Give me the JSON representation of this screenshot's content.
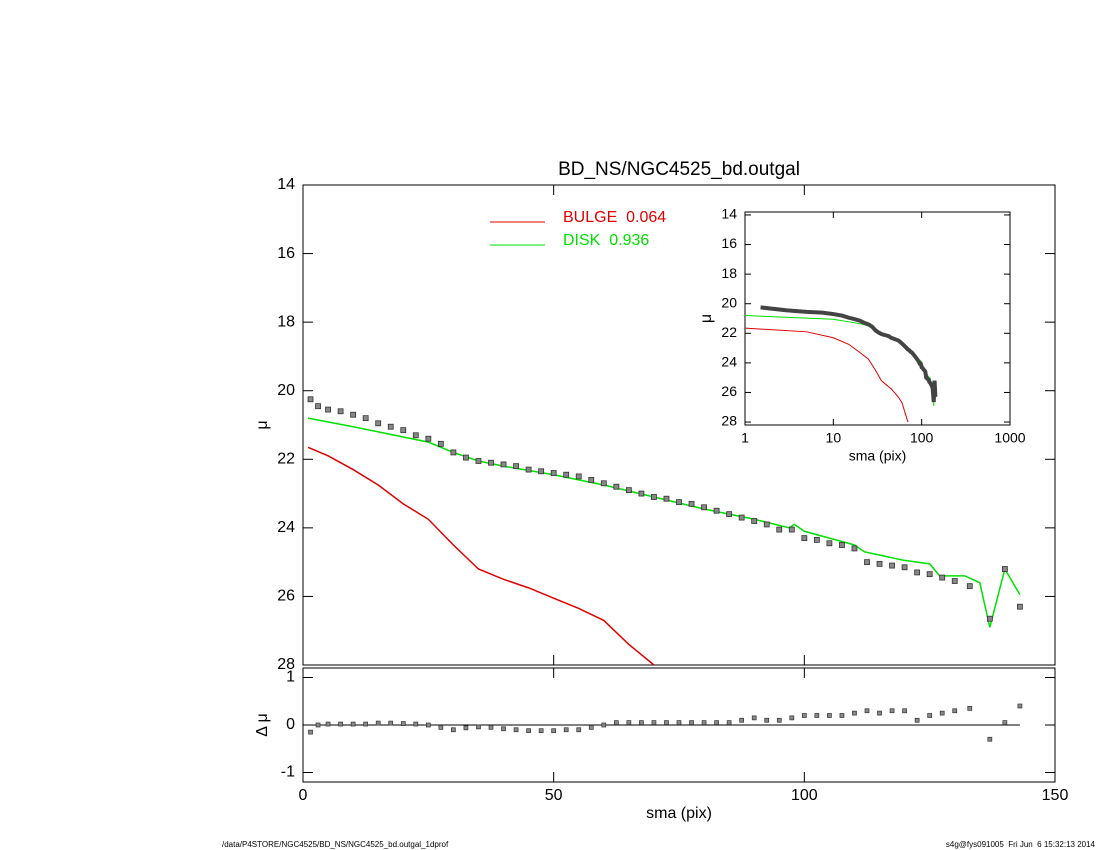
{
  "chart_data": [
    {
      "type": "line",
      "title": "BD_NS/NGC4525_bd.outgal",
      "ylabel": "μ",
      "xlim": [
        0,
        150
      ],
      "xticks": [
        0,
        50,
        100,
        150
      ],
      "ylim": [
        28,
        14
      ],
      "yticks": [
        14,
        16,
        18,
        20,
        22,
        24,
        26,
        28
      ],
      "series": [
        {
          "name": "BULGE",
          "fraction": 0.064,
          "color": "#e00000",
          "x": [
            1,
            5,
            10,
            15,
            20,
            25,
            30,
            35,
            40,
            45,
            50,
            55,
            60,
            65,
            70
          ],
          "values": [
            21.65,
            21.9,
            22.3,
            22.75,
            23.3,
            23.75,
            24.5,
            25.2,
            25.5,
            25.75,
            26.05,
            26.35,
            26.7,
            27.4,
            28.0
          ]
        },
        {
          "name": "DISK",
          "fraction": 0.936,
          "color": "#00e000",
          "x": [
            1,
            10,
            20,
            25,
            30,
            35,
            40,
            50,
            60,
            70,
            80,
            90,
            97,
            98,
            100,
            110,
            112,
            120,
            125,
            127,
            132,
            135,
            137,
            140,
            143
          ],
          "values": [
            20.8,
            21.05,
            21.35,
            21.5,
            21.8,
            22.05,
            22.2,
            22.45,
            22.75,
            23.1,
            23.45,
            23.75,
            24.0,
            23.9,
            24.1,
            24.5,
            24.7,
            24.95,
            25.05,
            25.4,
            25.4,
            25.6,
            26.9,
            25.2,
            25.95
          ]
        }
      ],
      "points": {
        "color": "#888888",
        "x": [
          1.5,
          3,
          5,
          7.5,
          10,
          12.5,
          15,
          17.5,
          20,
          22.5,
          25,
          27.5,
          30,
          32.5,
          35,
          37.5,
          40,
          42.5,
          45,
          47.5,
          50,
          52.5,
          55,
          57.5,
          60,
          62.5,
          65,
          67.5,
          70,
          72.5,
          75,
          77.5,
          80,
          82.5,
          85,
          87.5,
          90,
          92.5,
          95,
          97.5,
          100,
          102.5,
          105,
          107.5,
          110,
          112.5,
          115,
          117.5,
          120,
          122.5,
          125,
          127.5,
          130,
          133,
          137,
          140,
          143
        ],
        "values": [
          20.25,
          20.45,
          20.55,
          20.6,
          20.7,
          20.8,
          20.95,
          21.05,
          21.15,
          21.3,
          21.4,
          21.55,
          21.8,
          21.95,
          22.05,
          22.1,
          22.15,
          22.2,
          22.3,
          22.35,
          22.4,
          22.45,
          22.5,
          22.6,
          22.7,
          22.8,
          22.9,
          23.0,
          23.1,
          23.15,
          23.25,
          23.3,
          23.4,
          23.5,
          23.6,
          23.7,
          23.8,
          23.9,
          24.05,
          24.05,
          24.3,
          24.35,
          24.45,
          24.5,
          24.6,
          25.0,
          25.05,
          25.1,
          25.15,
          25.3,
          25.35,
          25.45,
          25.55,
          25.7,
          26.65,
          25.2,
          26.3
        ]
      }
    },
    {
      "type": "line",
      "xlabel": "sma (pix)",
      "ylabel": "μ",
      "xlog": true,
      "xlim": [
        1,
        1000
      ],
      "xticks": [
        1,
        10,
        100,
        1000
      ],
      "ylim": [
        28.2,
        13.8
      ],
      "yticks": [
        14,
        16,
        18,
        20,
        22,
        24,
        26,
        28
      ]
    },
    {
      "type": "scatter",
      "xlabel": "sma (pix)",
      "ylabel": "Δ μ",
      "xlim": [
        0,
        150
      ],
      "xticks": [
        0,
        50,
        100,
        150
      ],
      "ylim": [
        -1.2,
        1.2
      ],
      "yticks": [
        -1,
        0,
        1
      ],
      "values": [
        -0.15,
        0,
        0.02,
        0.02,
        0.02,
        0.02,
        0.04,
        0.04,
        0.03,
        0.02,
        0,
        -0.05,
        -0.1,
        -0.06,
        -0.04,
        -0.05,
        -0.08,
        -0.1,
        -0.12,
        -0.12,
        -0.12,
        -0.1,
        -0.1,
        -0.05,
        0,
        0.05,
        0.05,
        0.05,
        0.05,
        0.05,
        0.05,
        0.05,
        0.05,
        0.05,
        0.05,
        0.1,
        0.15,
        0.1,
        0.1,
        0.15,
        0.2,
        0.2,
        0.2,
        0.2,
        0.25,
        0.3,
        0.25,
        0.3,
        0.3,
        0.1,
        0.2,
        0.25,
        0.3,
        0.35,
        -0.3,
        0.05,
        0.4
      ]
    }
  ],
  "footer": {
    "left": "/data/P4STORE/NGC4525/BD_NS/NGC4525_bd.outgal_1dprof",
    "right": "s4g@fys091005  Fri Jun  6 15:32:13 2014"
  }
}
